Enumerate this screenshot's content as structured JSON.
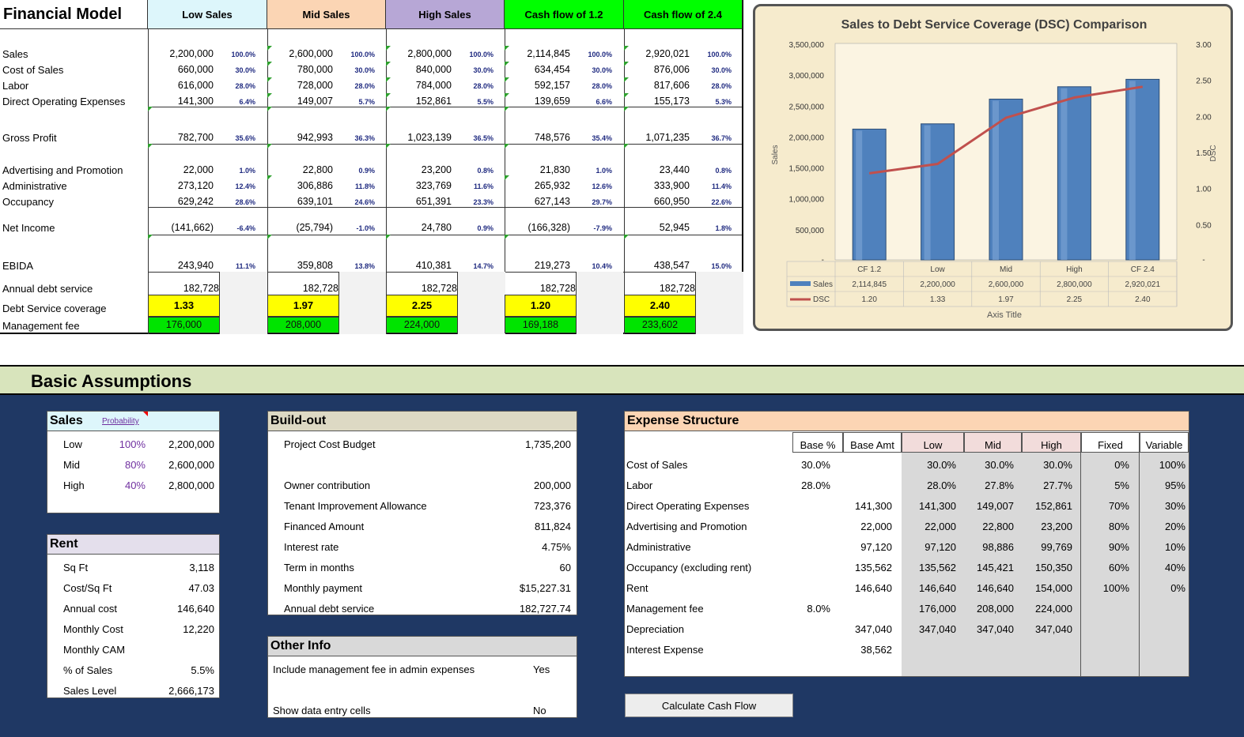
{
  "model": {
    "title": "Financial Model",
    "columns": [
      "Low Sales",
      "Mid Sales",
      "High Sales",
      "Cash flow of 1.2",
      "Cash flow of 2.4"
    ],
    "column_colors": [
      "#ddf6fb",
      "#fbd5b4",
      "#b7a7d6",
      "#00ff00",
      "#00ff00"
    ],
    "rows": [
      {
        "label": "Sales",
        "values": [
          "2,200,000",
          "2,600,000",
          "2,800,000",
          "2,114,845",
          "2,920,021"
        ],
        "pcts": [
          "100.0%",
          "100.0%",
          "100.0%",
          "100.0%",
          "100.0%"
        ]
      },
      {
        "label": "Cost of Sales",
        "values": [
          "660,000",
          "780,000",
          "840,000",
          "634,454",
          "876,006"
        ],
        "pcts": [
          "30.0%",
          "30.0%",
          "30.0%",
          "30.0%",
          "30.0%"
        ]
      },
      {
        "label": "Labor",
        "values": [
          "616,000",
          "728,000",
          "784,000",
          "592,157",
          "817,606"
        ],
        "pcts": [
          "28.0%",
          "28.0%",
          "28.0%",
          "28.0%",
          "28.0%"
        ]
      },
      {
        "label": "Direct Operating Expenses",
        "values": [
          "141,300",
          "149,007",
          "152,861",
          "139,659",
          "155,173"
        ],
        "pcts": [
          "6.4%",
          "5.7%",
          "5.5%",
          "6.6%",
          "5.3%"
        ]
      },
      {
        "label": "Gross Profit",
        "values": [
          "782,700",
          "942,993",
          "1,023,139",
          "748,576",
          "1,071,235"
        ],
        "pcts": [
          "35.6%",
          "36.3%",
          "36.5%",
          "35.4%",
          "36.7%"
        ]
      },
      {
        "label": "Advertising and Promotion",
        "values": [
          "22,000",
          "22,800",
          "23,200",
          "21,830",
          "23,440"
        ],
        "pcts": [
          "1.0%",
          "0.9%",
          "0.8%",
          "1.0%",
          "0.8%"
        ]
      },
      {
        "label": "Administrative",
        "values": [
          "273,120",
          "306,886",
          "323,769",
          "265,932",
          "333,900"
        ],
        "pcts": [
          "12.4%",
          "11.8%",
          "11.6%",
          "12.6%",
          "11.4%"
        ]
      },
      {
        "label": "Occupancy",
        "values": [
          "629,242",
          "639,101",
          "651,391",
          "627,143",
          "660,950"
        ],
        "pcts": [
          "28.6%",
          "24.6%",
          "23.3%",
          "29.7%",
          "22.6%"
        ]
      },
      {
        "label": "Net Income",
        "values": [
          "(141,662)",
          "(25,794)",
          "24,780",
          "(166,328)",
          "52,945"
        ],
        "pcts": [
          "-6.4%",
          "-1.0%",
          "0.9%",
          "-7.9%",
          "1.8%"
        ]
      },
      {
        "label": "EBIDA",
        "values": [
          "243,940",
          "359,808",
          "410,381",
          "219,273",
          "438,547"
        ],
        "pcts": [
          "11.1%",
          "13.8%",
          "14.7%",
          "10.4%",
          "15.0%"
        ]
      },
      {
        "label": "Annual debt service",
        "values": [
          "182,728",
          "182,728",
          "182,728",
          "182,728",
          "182,728"
        ],
        "pcts": [
          "",
          "",
          "",
          "",
          ""
        ]
      }
    ],
    "dsc": {
      "label": "Debt Service coverage",
      "values": [
        "1.33",
        "1.97",
        "2.25",
        "1.20",
        "2.40"
      ]
    },
    "mgmt": {
      "label": "Management fee",
      "values": [
        "176,000",
        "208,000",
        "224,000",
        "169,188",
        "233,602"
      ]
    }
  },
  "chart_data": {
    "type": "bar",
    "title": "Sales to Debt Service Coverage (DSC) Comparison",
    "categories": [
      "CF 1.2",
      "Low",
      "Mid",
      "High",
      "CF 2.4"
    ],
    "series": [
      {
        "name": "Sales",
        "type": "bar",
        "axis": "left",
        "values": [
          2114845,
          2200000,
          2600000,
          2800000,
          2920021
        ],
        "labels": [
          "2,114,845",
          "2,200,000",
          "2,600,000",
          "2,800,000",
          "2,920,021"
        ],
        "color": "#4f81bd"
      },
      {
        "name": "DSC",
        "type": "line",
        "axis": "right",
        "values": [
          1.2,
          1.33,
          1.97,
          2.25,
          2.4
        ],
        "labels": [
          "1.20",
          "1.33",
          "1.97",
          "2.25",
          "2.40"
        ],
        "color": "#c0504d"
      }
    ],
    "ylabel": "Sales",
    "y2label": "DSC",
    "xlabel": "Axis Title",
    "ylim": [
      0,
      3500000
    ],
    "y2lim": [
      0,
      3
    ],
    "yticks": [
      "3,500,000",
      "3,000,000",
      "2,500,000",
      "2,000,000",
      "1,500,000",
      "1,000,000",
      "500,000",
      "-"
    ],
    "y2ticks": [
      "3.00",
      "2.50",
      "2.00",
      "1.50",
      "1.00",
      "0.50",
      "-"
    ],
    "legend": "data-table"
  },
  "assumptions": {
    "title": "Basic Assumptions",
    "sales": {
      "title": "Sales",
      "link": "Probability",
      "rows": [
        [
          "Low",
          "100%",
          "2,200,000"
        ],
        [
          "Mid",
          "80%",
          "2,600,000"
        ],
        [
          "High",
          "40%",
          "2,800,000"
        ]
      ]
    },
    "rent": {
      "title": "Rent",
      "rows": [
        [
          "Sq Ft",
          "3,118"
        ],
        [
          "Cost/Sq Ft",
          "47.03"
        ],
        [
          "Annual cost",
          "146,640"
        ],
        [
          "Monthly Cost",
          "12,220"
        ],
        [
          "Monthly CAM",
          ""
        ],
        [
          "% of Sales",
          "5.5%"
        ],
        [
          "Sales Level",
          "2,666,173"
        ]
      ]
    },
    "buildout": {
      "title": "Build-out",
      "rows": [
        [
          "Project Cost Budget",
          "1,735,200"
        ],
        [
          "",
          ""
        ],
        [
          "Owner contribution",
          "200,000"
        ],
        [
          "Tenant Improvement Allowance",
          "723,376"
        ],
        [
          "Financed Amount",
          "811,824"
        ],
        [
          "Interest rate",
          "4.75%"
        ],
        [
          "Term in months",
          "60"
        ],
        [
          "Monthly payment",
          "$15,227.31"
        ],
        [
          "Annual debt service",
          "182,727.74"
        ]
      ]
    },
    "other": {
      "title": "Other Info",
      "rows": [
        [
          "Include management fee in admin expenses",
          "Yes"
        ],
        [
          "",
          ""
        ],
        [
          "Show data entry cells",
          "No"
        ]
      ]
    },
    "expense": {
      "title": "Expense Structure",
      "headers": [
        "Base %",
        "Base Amt",
        "Low",
        "Mid",
        "High",
        "Fixed",
        "Variable"
      ],
      "rows": [
        [
          "Cost of Sales",
          "30.0%",
          "",
          "30.0%",
          "30.0%",
          "30.0%",
          "0%",
          "100%"
        ],
        [
          "Labor",
          "28.0%",
          "",
          "28.0%",
          "27.8%",
          "27.7%",
          "5%",
          "95%"
        ],
        [
          "Direct Operating Expenses",
          "",
          "141,300",
          "141,300",
          "149,007",
          "152,861",
          "70%",
          "30%"
        ],
        [
          "Advertising and Promotion",
          "",
          "22,000",
          "22,000",
          "22,800",
          "23,200",
          "80%",
          "20%"
        ],
        [
          "Administrative",
          "",
          "97,120",
          "97,120",
          "98,886",
          "99,769",
          "90%",
          "10%"
        ],
        [
          "Occupancy (excluding rent)",
          "",
          "135,562",
          "135,562",
          "145,421",
          "150,350",
          "60%",
          "40%"
        ],
        [
          "Rent",
          "",
          "146,640",
          "146,640",
          "146,640",
          "154,000",
          "100%",
          "0%"
        ],
        [
          "Management fee",
          "8.0%",
          "",
          "176,000",
          "208,000",
          "224,000",
          "",
          ""
        ],
        [
          "Depreciation",
          "",
          "347,040",
          "347,040",
          "347,040",
          "347,040",
          "",
          ""
        ],
        [
          "Interest Expense",
          "",
          "38,562",
          "",
          "",
          "",
          "",
          ""
        ]
      ]
    },
    "button": "Calculate Cash Flow"
  }
}
